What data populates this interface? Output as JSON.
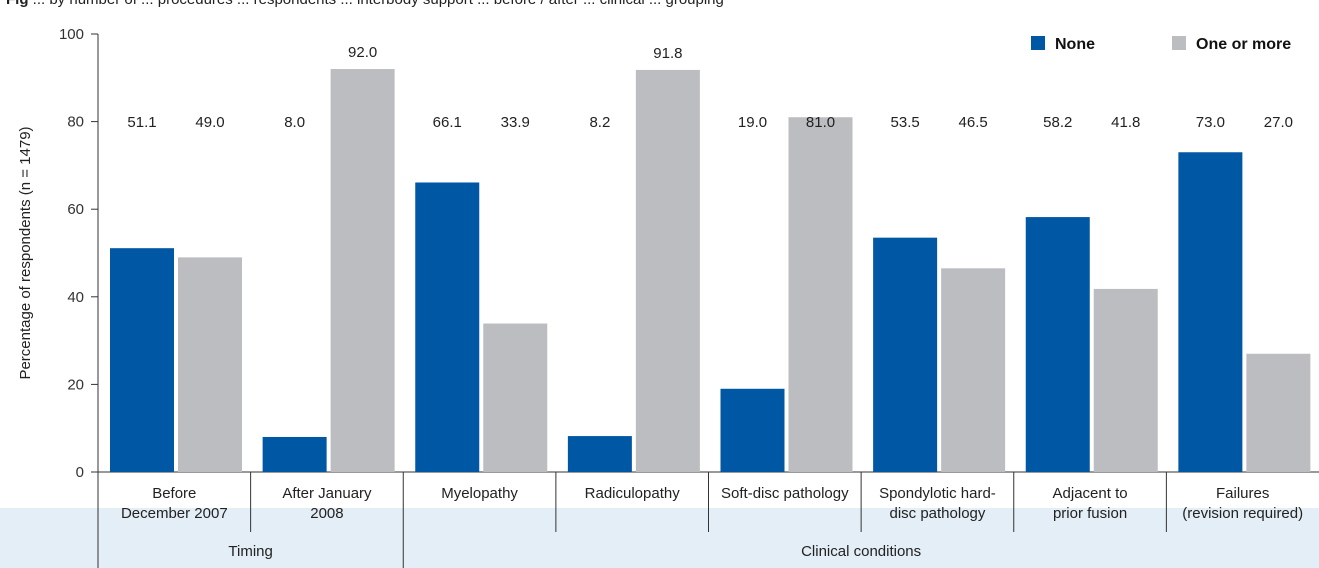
{
  "caption": {
    "label": "Fig",
    "text": "... by number of ... procedures ... respondents ... interbody support ... before / after ... clinical ... grouping"
  },
  "colors": {
    "none": "#0057a3",
    "one_or_more": "#bcbdc0",
    "axis": "#333333",
    "band": "#e4eef6"
  },
  "chart_data": {
    "type": "bar",
    "title": "",
    "xlabel": "",
    "ylabel": "Percentage of respondents (n = 1479)",
    "ylim": [
      0,
      100
    ],
    "yticks": [
      0,
      20,
      40,
      60,
      80,
      100
    ],
    "grid": false,
    "legend_position": "top-right",
    "categories": [
      [
        "Before",
        "December 2007"
      ],
      [
        "After January",
        "2008"
      ],
      [
        "Myelopathy"
      ],
      [
        "Radiculopathy"
      ],
      [
        "Soft-disc pathology"
      ],
      [
        "Spondylotic hard-",
        "disc pathology"
      ],
      [
        "Adjacent to",
        "prior fusion"
      ],
      [
        "Failures",
        "(revision required)"
      ]
    ],
    "series": [
      {
        "name": "None",
        "values": [
          51.1,
          8.0,
          66.1,
          8.2,
          19.0,
          53.5,
          58.2,
          73.0
        ]
      },
      {
        "name": "One or more",
        "values": [
          49.0,
          92.0,
          33.9,
          91.8,
          81.0,
          46.5,
          41.8,
          27.0
        ]
      }
    ],
    "data_labels": [
      [
        "51.1",
        "49.0"
      ],
      [
        "8.0",
        "92.0"
      ],
      [
        "66.1",
        "33.9"
      ],
      [
        "8.2",
        "91.8"
      ],
      [
        "19.0",
        "81.0"
      ],
      [
        "53.5",
        "46.5"
      ],
      [
        "58.2",
        "41.8"
      ],
      [
        "73.0",
        "27.0"
      ]
    ],
    "groups": [
      {
        "label": "Timing",
        "span": [
          0,
          1
        ]
      },
      {
        "label": "Clinical conditions",
        "span": [
          2,
          7
        ]
      }
    ]
  }
}
